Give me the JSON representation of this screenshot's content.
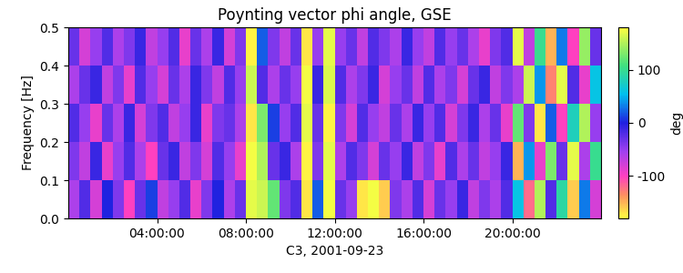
{
  "chart_data": {
    "type": "heatmap",
    "title": "Poynting vector phi angle, GSE",
    "x_label": "C3, 2001-09-23",
    "y_label": "Frequency [Hz]",
    "colorbar_label": "deg",
    "x": [
      0,
      0.5,
      1,
      1.5,
      2,
      2.5,
      3,
      3.5,
      4,
      4.5,
      5,
      5.5,
      6,
      6.5,
      7,
      7.5,
      8,
      8.5,
      9,
      9.5,
      10,
      10.5,
      11,
      11.5,
      12,
      12.5,
      13,
      13.5,
      14,
      14.5,
      15,
      15.5,
      16,
      16.5,
      17,
      17.5,
      18,
      18.5,
      19,
      19.5,
      20,
      20.5,
      21,
      21.5,
      22,
      22.5,
      23,
      23.5,
      24
    ],
    "y": [
      0.0,
      0.1,
      0.2,
      0.3,
      0.4,
      0.5
    ],
    "cells": [
      [
        -60,
        -20,
        -80,
        0,
        -40,
        -100,
        -30,
        10,
        -70,
        -50,
        -20,
        -90,
        -40,
        0,
        -60,
        -30,
        170,
        160,
        120,
        -40,
        -20,
        -170,
        20,
        175,
        -30,
        -50,
        -170,
        175,
        -160,
        -40,
        -60,
        -20,
        -80,
        -30,
        -50,
        -10,
        -70,
        -40,
        -60,
        -20,
        60,
        -120,
        150,
        -20,
        90,
        -160,
        30,
        -80
      ],
      [
        -40,
        -70,
        -10,
        -90,
        -50,
        -20,
        -60,
        -100,
        -30,
        -10,
        -70,
        -40,
        -80,
        -20,
        -50,
        -90,
        175,
        150,
        -30,
        -10,
        -60,
        -175,
        -40,
        170,
        -60,
        -20,
        -40,
        -80,
        -30,
        -50,
        -10,
        -70,
        -40,
        -90,
        -20,
        -60,
        -30,
        -70,
        -50,
        -10,
        -150,
        40,
        -90,
        130,
        -30,
        170,
        -60,
        100
      ],
      [
        -20,
        -50,
        -90,
        -30,
        -60,
        -10,
        -80,
        -40,
        -20,
        -70,
        -50,
        -10,
        -90,
        -40,
        -30,
        -60,
        -170,
        130,
        10,
        -50,
        -20,
        170,
        -30,
        -175,
        -40,
        -80,
        -20,
        -50,
        -70,
        -30,
        -60,
        -10,
        -50,
        -20,
        -80,
        -40,
        -10,
        -60,
        -30,
        -90,
        120,
        -40,
        -170,
        20,
        -100,
        80,
        150,
        -50
      ],
      [
        -60,
        -30,
        -10,
        -70,
        -40,
        -90,
        -20,
        -50,
        -80,
        -30,
        -60,
        -10,
        -40,
        -70,
        -20,
        -50,
        160,
        -20,
        -60,
        -30,
        -50,
        175,
        -10,
        165,
        -20,
        -60,
        -40,
        -10,
        -80,
        -50,
        -30,
        -70,
        -20,
        -60,
        -40,
        -80,
        -30,
        -10,
        -70,
        -40,
        -60,
        160,
        40,
        -130,
        170,
        -20,
        -90,
        60
      ],
      [
        -30,
        -80,
        -50,
        -20,
        -60,
        -40,
        -10,
        -70,
        -50,
        -20,
        -90,
        -30,
        -60,
        -10,
        -80,
        -40,
        -175,
        20,
        -40,
        -70,
        -30,
        -170,
        -50,
        170,
        -50,
        -30,
        -70,
        -20,
        -40,
        -60,
        -10,
        -50,
        -70,
        -20,
        -50,
        -30,
        -60,
        -90,
        -40,
        -20,
        170,
        -70,
        100,
        -150,
        30,
        -100,
        140,
        -30
      ]
    ],
    "xlim": [
      0,
      24
    ],
    "xticks": [
      {
        "value": 4,
        "label": "04:00:00"
      },
      {
        "value": 8,
        "label": "08:00:00"
      },
      {
        "value": 12,
        "label": "12:00:00"
      },
      {
        "value": 16,
        "label": "16:00:00"
      },
      {
        "value": 20,
        "label": "20:00:00"
      }
    ],
    "ylim": [
      0.0,
      0.5
    ],
    "yticks": [
      0.0,
      0.1,
      0.2,
      0.3,
      0.4,
      0.5
    ],
    "clim": [
      -180,
      180
    ],
    "cticks": [
      -100,
      0,
      100
    ]
  }
}
